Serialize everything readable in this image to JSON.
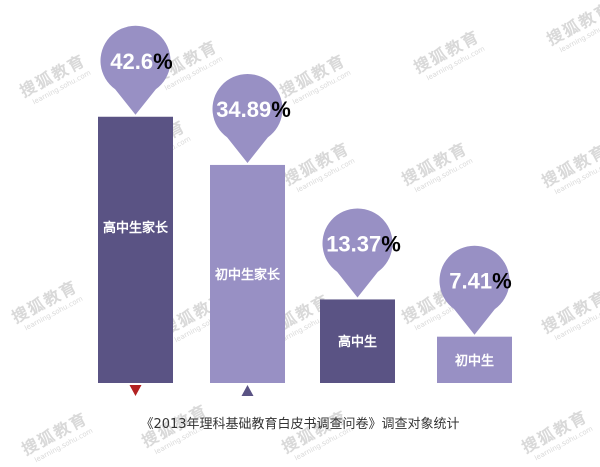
{
  "watermark": {
    "main": "搜狐教育",
    "sub": "learning.sohu.com"
  },
  "caption": "《2013年理科基础教育白皮书调查问卷》调查对象统计",
  "chart_data": {
    "type": "bar",
    "title": "",
    "categories": [
      "高中生家长",
      "初中生家长",
      "高中生",
      "初中生"
    ],
    "values": [
      42.6,
      34.89,
      13.37,
      7.41
    ],
    "value_labels": [
      "42.6",
      "34.89",
      "13.37",
      "7.41"
    ],
    "unit": "%",
    "colors": {
      "dark_bar": "#5a5384",
      "light_bar": "#9890c4",
      "pin": "#9890c4",
      "bar_label": "#ffffff",
      "value_label": "#ffffff",
      "unit": "#000000",
      "marker_down": "#b22222",
      "marker_up": "#5a5384"
    },
    "bar_colors": [
      "dark_bar",
      "light_bar",
      "dark_bar",
      "light_bar"
    ],
    "markers": [
      {
        "shape": "triangle-down",
        "color": "marker_down"
      },
      {
        "shape": "triangle-up",
        "color": "marker_up"
      }
    ],
    "ylim": [
      0,
      50
    ],
    "grid": false,
    "legend": "none"
  }
}
